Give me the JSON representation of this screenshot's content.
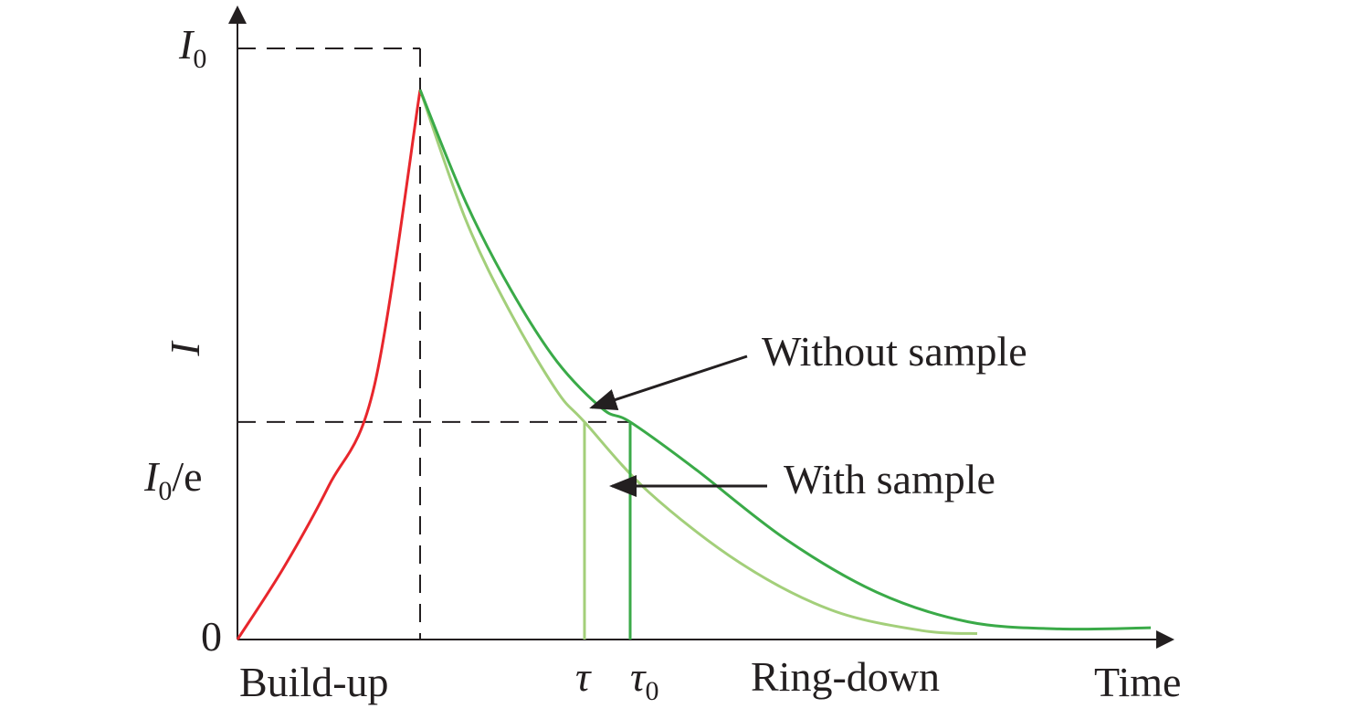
{
  "chart_data": {
    "type": "line",
    "title": "",
    "xlabel": "Time",
    "ylabel": "I",
    "x_range": [
      0,
      10
    ],
    "y_range": [
      0,
      1
    ],
    "grid": false,
    "legend": "none",
    "y_ticks": [
      {
        "value": 0,
        "label": "0"
      },
      {
        "value": 0.368,
        "label_main": "I",
        "label_sub": "0",
        "label_suffix": "/e"
      },
      {
        "value": 1,
        "label_main": "I",
        "label_sub": "0"
      }
    ],
    "x_markers": [
      {
        "value": 3.8,
        "label": "τ"
      },
      {
        "value": 4.3,
        "label": "τ",
        "label_sub": "0"
      }
    ],
    "x_region_labels": [
      "Build-up",
      "Ring-down"
    ],
    "series": [
      {
        "role": "build-up",
        "color": "#e8262c",
        "points": [
          [
            0,
            0
          ],
          [
            0.5,
            0.12
          ],
          [
            1,
            0.26
          ],
          [
            1.5,
            0.43
          ],
          [
            2,
            0.93
          ]
        ]
      },
      {
        "role": "ring-down-without-sample",
        "color": "#3aaa48",
        "points": [
          [
            2,
            0.93
          ],
          [
            2.5,
            0.74
          ],
          [
            3,
            0.59
          ],
          [
            3.5,
            0.47
          ],
          [
            4,
            0.39
          ],
          [
            4.3,
            0.368
          ],
          [
            5,
            0.29
          ],
          [
            6,
            0.17
          ],
          [
            7,
            0.08
          ],
          [
            8,
            0.03
          ],
          [
            9,
            0.018
          ],
          [
            10,
            0.02
          ]
        ]
      },
      {
        "role": "ring-down-with-sample",
        "color": "#a3cf7a",
        "points": [
          [
            2,
            0.93
          ],
          [
            2.5,
            0.71
          ],
          [
            3,
            0.55
          ],
          [
            3.5,
            0.42
          ],
          [
            3.8,
            0.368
          ],
          [
            4.5,
            0.25
          ],
          [
            5.5,
            0.13
          ],
          [
            6.5,
            0.05
          ],
          [
            7.5,
            0.015
          ],
          [
            8.1,
            0.01
          ]
        ]
      }
    ],
    "annotations": [
      {
        "text": "Without sample",
        "points_to_series": "ring-down-without-sample"
      },
      {
        "text": "With sample",
        "points_to_series": "ring-down-with-sample"
      }
    ],
    "colors": {
      "axis": "#231f20",
      "build_up": "#e8262c",
      "without_sample": "#3aaa48",
      "with_sample": "#a3cf7a"
    }
  }
}
